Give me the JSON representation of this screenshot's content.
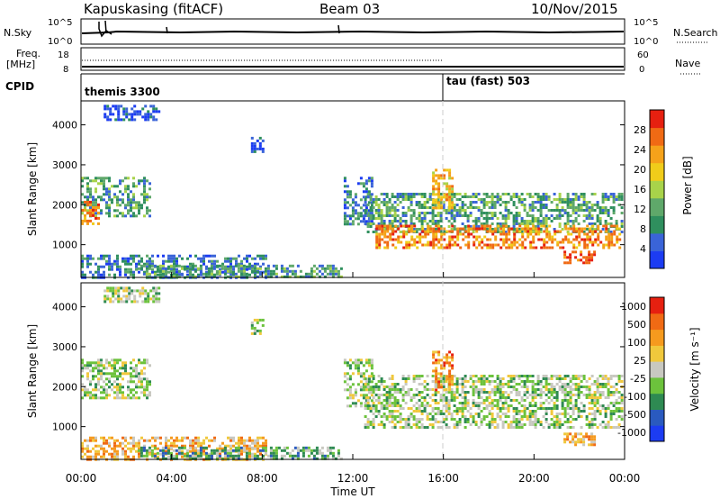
{
  "header": {
    "station_title": "Kapuskasing (fitACF)",
    "beam": "Beam 03",
    "date": "10/Nov/2015"
  },
  "nsky_panel": {
    "left_label": "N.Sky",
    "right_label": "N.Search",
    "left_ticks": [
      "10^5",
      "10^0"
    ],
    "right_ticks": [
      "10^5",
      "10^0"
    ]
  },
  "freq_panel": {
    "left_label_line1": "Freq.",
    "left_label_line2": "[MHz]",
    "right_label": "Nave",
    "left_ticks": [
      "18",
      "8"
    ],
    "right_ticks": [
      "60",
      "0"
    ]
  },
  "cpid_panel": {
    "label": "CPID",
    "modes": [
      {
        "name": "themis 3300",
        "start_hour": 0
      },
      {
        "name": "tau (fast) 503",
        "start_hour": 16
      }
    ]
  },
  "chart_data": [
    {
      "type": "heatmap",
      "panel": "power",
      "ylabel": "Slant Range [km]",
      "ylim": [
        180,
        4600
      ],
      "yticks": [
        1000,
        2000,
        3000,
        4000
      ],
      "xlim": [
        0,
        24
      ],
      "colorbar": {
        "label": "Power [dB]",
        "ticks": [
          "4",
          "8",
          "12",
          "16",
          "20",
          "24",
          "28"
        ],
        "colors": [
          "#1c3cf2",
          "#3a64d8",
          "#2f8f5e",
          "#5fa86a",
          "#a8d34a",
          "#f0cc1a",
          "#f5a21a",
          "#f06a14",
          "#e62010"
        ]
      },
      "regions": [
        {
          "t0": 0.0,
          "t1": 3.0,
          "r0": 1700,
          "r1": 2700,
          "level": 3
        },
        {
          "t0": 0.0,
          "t1": 0.8,
          "r0": 1500,
          "r1": 2100,
          "level": 7
        },
        {
          "t0": 0.0,
          "t1": 8.2,
          "r0": 200,
          "r1": 750,
          "level": 2
        },
        {
          "t0": 2.5,
          "t1": 11.5,
          "r0": 200,
          "r1": 500,
          "level": 3
        },
        {
          "t0": 7.5,
          "t1": 8.0,
          "r0": 3300,
          "r1": 3700,
          "level": 1
        },
        {
          "t0": 11.6,
          "t1": 12.8,
          "r0": 1500,
          "r1": 2700,
          "level": 2
        },
        {
          "t0": 12.5,
          "t1": 23.9,
          "r0": 1300,
          "r1": 2300,
          "level": 3
        },
        {
          "t0": 13.0,
          "t1": 23.8,
          "r0": 950,
          "r1": 1500,
          "level": 7
        },
        {
          "t0": 15.5,
          "t1": 16.4,
          "r0": 1900,
          "r1": 2900,
          "level": 6
        },
        {
          "t0": 21.3,
          "t1": 22.7,
          "r0": 550,
          "r1": 850,
          "level": 8
        },
        {
          "t0": 1.0,
          "t1": 3.5,
          "r0": 4100,
          "r1": 4500,
          "level": 1
        }
      ]
    },
    {
      "type": "heatmap",
      "panel": "velocity",
      "ylabel": "Slant Range [km]",
      "xlabel": "Time UT",
      "ylim": [
        180,
        4600
      ],
      "yticks": [
        1000,
        2000,
        3000,
        4000
      ],
      "xlim": [
        0,
        24
      ],
      "xticks": [
        "00:00",
        "04:00",
        "08:00",
        "12:00",
        "16:00",
        "20:00",
        "00:00"
      ],
      "colorbar": {
        "label": "Velocity [m s⁻¹]",
        "ticks": [
          "1000",
          "500",
          "100",
          "25",
          "-25",
          "-100",
          "-500",
          "-1000"
        ],
        "colors": [
          "#1c3cf2",
          "#2a5abf",
          "#2e8a52",
          "#6cc23c",
          "#c8c8c0",
          "#f0c83c",
          "#f59a1e",
          "#f06a14",
          "#e62010"
        ]
      },
      "regions": [
        {
          "t0": 0.0,
          "t1": 3.0,
          "r0": 1700,
          "r1": 2700,
          "level": 4
        },
        {
          "t0": 0.0,
          "t1": 8.2,
          "r0": 200,
          "r1": 750,
          "level": 6
        },
        {
          "t0": 2.5,
          "t1": 11.5,
          "r0": 200,
          "r1": 500,
          "level": 3
        },
        {
          "t0": 7.5,
          "t1": 8.0,
          "r0": 3300,
          "r1": 3700,
          "level": 4
        },
        {
          "t0": 11.6,
          "t1": 12.8,
          "r0": 1500,
          "r1": 2700,
          "level": 4
        },
        {
          "t0": 12.5,
          "t1": 23.9,
          "r0": 1000,
          "r1": 2300,
          "level": 4
        },
        {
          "t0": 15.5,
          "t1": 16.4,
          "r0": 1900,
          "r1": 2900,
          "level": 7
        },
        {
          "t0": 21.3,
          "t1": 22.7,
          "r0": 550,
          "r1": 850,
          "level": 6
        },
        {
          "t0": 1.0,
          "t1": 3.5,
          "r0": 4100,
          "r1": 4500,
          "level": 4
        }
      ]
    }
  ]
}
